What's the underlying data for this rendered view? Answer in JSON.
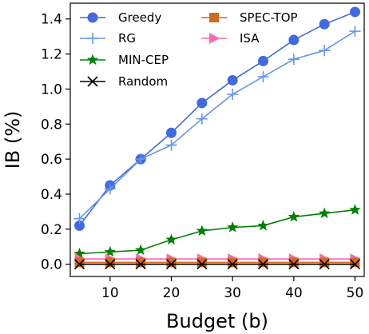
{
  "chart_data": {
    "type": "line",
    "title": "",
    "xlabel": "Budget (b)",
    "ylabel": "IB (%)",
    "x": [
      5,
      10,
      15,
      20,
      25,
      30,
      35,
      40,
      45,
      50
    ],
    "xlim": [
      3.5,
      51.5
    ],
    "ylim": [
      -0.07,
      1.49
    ],
    "xticks": [
      10,
      20,
      30,
      40,
      50
    ],
    "yticks": [
      "0.0",
      "0.2",
      "0.4",
      "0.6",
      "0.8",
      "1.0",
      "1.2",
      "1.4"
    ],
    "grid": false,
    "legend_position": "top-left",
    "series": [
      {
        "name": "Greedy",
        "color": "#4169E1",
        "marker": "circle",
        "values": [
          0.22,
          0.45,
          0.6,
          0.75,
          0.92,
          1.05,
          1.16,
          1.28,
          1.37,
          1.44
        ]
      },
      {
        "name": "RG",
        "color": "#6495ED",
        "marker": "plus",
        "values": [
          0.26,
          0.43,
          0.6,
          0.68,
          0.83,
          0.97,
          1.07,
          1.17,
          1.22,
          1.33
        ]
      },
      {
        "name": "MIN-CEP",
        "color": "#008000",
        "marker": "star",
        "values": [
          0.06,
          0.07,
          0.08,
          0.14,
          0.19,
          0.21,
          0.22,
          0.27,
          0.29,
          0.31
        ]
      },
      {
        "name": "Random",
        "color": "#000000",
        "marker": "x",
        "values": [
          0.0,
          0.0,
          0.0,
          0.0,
          0.0,
          0.0,
          0.0,
          0.0,
          0.0,
          0.0
        ]
      },
      {
        "name": "SPEC-TOP",
        "color": "#D2691E",
        "marker": "square",
        "values": [
          0.01,
          0.01,
          0.01,
          0.01,
          0.01,
          0.01,
          0.01,
          0.01,
          0.01,
          0.01
        ]
      },
      {
        "name": "ISA",
        "color": "#FF69B4",
        "marker": "triangle-right",
        "values": [
          0.03,
          0.03,
          0.03,
          0.03,
          0.03,
          0.03,
          0.03,
          0.03,
          0.03,
          0.03
        ]
      }
    ]
  }
}
